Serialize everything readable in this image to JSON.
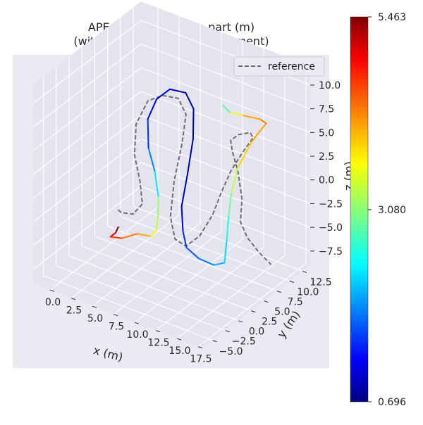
{
  "chart_data": {
    "type": "line",
    "projection": "3d",
    "title_line1": "APE w.r.t. translation part (m)",
    "title_line2": "(with Sim(3) Umeyama alignment)",
    "xlabel": "x (m)",
    "ylabel": "y (m)",
    "zlabel": "z (m)",
    "xlim": [
      -2,
      18
    ],
    "ylim": [
      -7,
      14
    ],
    "zlim": [
      -9,
      12
    ],
    "x_ticks": [
      "0.0",
      "2.5",
      "5.0",
      "7.5",
      "10.0",
      "12.5",
      "15.0",
      "17.5"
    ],
    "y_ticks": [
      "−5.0",
      "−2.5",
      "0.0",
      "2.5",
      "5.0",
      "7.5",
      "10.0",
      "12.5"
    ],
    "z_ticks": [
      "−7.5",
      "−5.0",
      "−2.5",
      "0.0",
      "2.5",
      "5.0",
      "7.5",
      "10.0"
    ],
    "grid": true,
    "legend": {
      "position": "top-right",
      "entries": [
        {
          "label": "reference",
          "style": "dashed",
          "color": "#6e6e6e"
        }
      ]
    },
    "colorbar": {
      "colormap": "jet",
      "min_label": "0.696",
      "mid_label": "3.080",
      "max_label": "5.463",
      "min": 0.696,
      "mid": 3.08,
      "max": 5.463
    },
    "series": [
      {
        "name": "reference",
        "style": "dashed",
        "points": [
          [
            2.6,
            2.0,
            -3.4
          ],
          [
            3.3,
            1.4,
            -3.2
          ],
          [
            4.4,
            1.9,
            -3.2
          ],
          [
            4.6,
            3.4,
            -2.7
          ],
          [
            3.7,
            4.4,
            -1.0
          ],
          [
            2.7,
            5.0,
            1.2
          ],
          [
            2.4,
            5.8,
            4.0
          ],
          [
            3.2,
            6.8,
            6.3
          ],
          [
            4.7,
            7.2,
            7.2
          ],
          [
            6.4,
            7.4,
            7.4
          ],
          [
            7.7,
            6.8,
            6.4
          ],
          [
            8.3,
            5.0,
            4.2
          ],
          [
            8.6,
            3.0,
            1.3
          ],
          [
            9.0,
            1.6,
            -1.8
          ],
          [
            9.8,
            1.2,
            -3.7
          ],
          [
            10.9,
            1.5,
            -4.2
          ],
          [
            12.1,
            2.2,
            -3.0
          ],
          [
            12.9,
            3.4,
            -1.0
          ],
          [
            13.1,
            4.8,
            0.9
          ],
          [
            13.4,
            6.2,
            2.7
          ],
          [
            14.1,
            7.3,
            4.4
          ],
          [
            15.2,
            7.5,
            6.2
          ],
          [
            15.4,
            6.6,
            7.2
          ],
          [
            14.5,
            5.8,
            7.0
          ],
          [
            13.4,
            6.1,
            5.9
          ],
          [
            12.8,
            7.4,
            4.0
          ],
          [
            12.9,
            8.3,
            1.6
          ],
          [
            13.4,
            8.3,
            -1.2
          ],
          [
            13.4,
            8.0,
            -3.5
          ],
          [
            14.1,
            8.2,
            -5.0
          ],
          [
            15.0,
            9.0,
            -6.6
          ],
          [
            15.8,
            10.0,
            -8.0
          ]
        ]
      },
      {
        "name": "",
        "style": "colormap",
        "points": [
          [
            3.2,
            1.0,
            -4.6
          ],
          [
            3.3,
            0.3,
            -4.9
          ],
          [
            3.0,
            -0.2,
            -5.2
          ],
          [
            3.3,
            1.6,
            -6.0
          ],
          [
            4.4,
            2.7,
            -5.6
          ],
          [
            5.7,
            3.3,
            -5.7
          ],
          [
            6.2,
            3.5,
            -4.9
          ],
          [
            6.2,
            3.8,
            -3.6
          ],
          [
            5.5,
            5.0,
            -2.2
          ],
          [
            4.6,
            5.8,
            -0.2
          ],
          [
            3.8,
            5.9,
            1.9
          ],
          [
            3.6,
            6.1,
            4.8
          ],
          [
            4.1,
            7.0,
            6.7
          ],
          [
            5.3,
            7.6,
            7.9
          ],
          [
            7.1,
            7.7,
            8.1
          ],
          [
            8.4,
            7.1,
            7.1
          ],
          [
            9.2,
            5.7,
            4.8
          ],
          [
            9.5,
            4.1,
            1.8
          ],
          [
            9.6,
            2.8,
            -1.0
          ],
          [
            10.0,
            2.4,
            -3.3
          ],
          [
            10.6,
            2.1,
            -4.7
          ],
          [
            11.8,
            2.5,
            -5.6
          ],
          [
            12.8,
            3.8,
            -6.5
          ],
          [
            13.7,
            4.4,
            -6.2
          ],
          [
            13.6,
            5.0,
            -4.0
          ],
          [
            13.7,
            5.2,
            -1.6
          ],
          [
            13.9,
            5.4,
            0.8
          ],
          [
            14.2,
            6.2,
            3.3
          ],
          [
            15.1,
            7.4,
            5.8
          ],
          [
            16.3,
            8.2,
            7.8
          ],
          [
            16.1,
            7.4,
            8.5
          ],
          [
            14.5,
            6.6,
            8.7
          ],
          [
            13.0,
            6.6,
            8.5
          ],
          [
            11.8,
            7.2,
            8.6
          ]
        ],
        "ape": [
          5.46,
          5.0,
          4.6,
          4.3,
          4.1,
          3.7,
          3.4,
          3.2,
          2.4,
          1.9,
          1.5,
          1.3,
          1.1,
          1.0,
          0.9,
          0.85,
          0.9,
          1.0,
          1.2,
          1.5,
          1.7,
          1.9,
          2.1,
          2.3,
          2.6,
          3.0,
          3.4,
          3.9,
          4.1,
          4.3,
          4.1,
          3.6,
          2.9,
          2.4
        ]
      }
    ]
  }
}
